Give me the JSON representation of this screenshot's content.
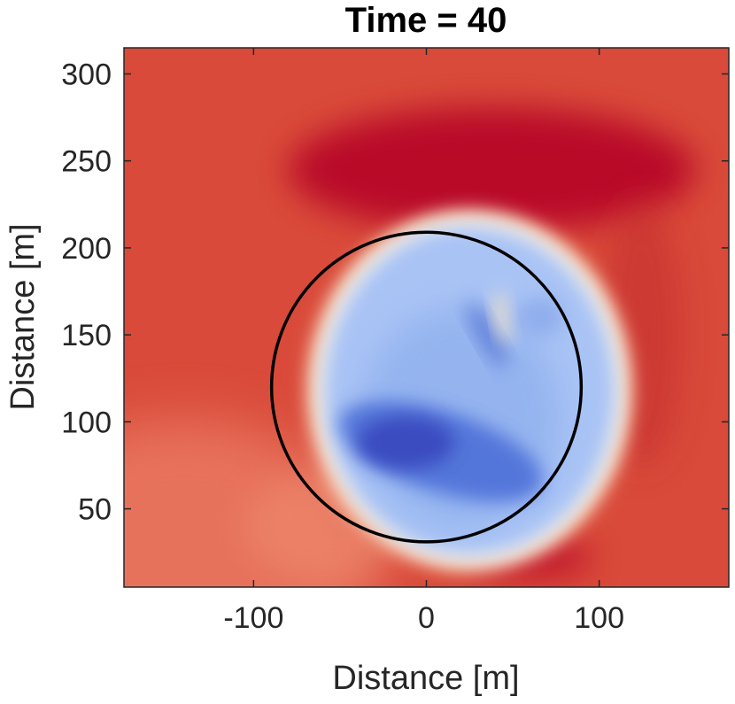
{
  "chart_data": {
    "type": "heatmap",
    "title": "Time = 40",
    "xlabel": "Distance [m]",
    "ylabel": "Distance [m]",
    "xlim": [
      -175,
      175
    ],
    "ylim": [
      5,
      315
    ],
    "x_ticks": [
      -100,
      0,
      100
    ],
    "x_tick_labels": [
      "-100",
      "0",
      "100"
    ],
    "y_ticks": [
      50,
      100,
      150,
      200,
      250,
      300
    ],
    "y_tick_labels": [
      "50",
      "100",
      "150",
      "200",
      "250",
      "300"
    ],
    "grid": false,
    "colormap": {
      "low": "#3b4cc0",
      "mid": "#f2f0ea",
      "high": "#b40426",
      "background": "#d94a3a"
    },
    "field_features": [
      {
        "kind": "blue-region",
        "center": [
          25,
          118
        ],
        "radius_x": 88,
        "radius_y": 98
      },
      {
        "kind": "minimum",
        "center": [
          -12,
          88
        ],
        "level": "darkest-blue"
      },
      {
        "kind": "minimum",
        "center": [
          35,
          150
        ],
        "level": "dark-blue-streak"
      },
      {
        "kind": "maximum",
        "center": [
          38,
          245
        ],
        "level": "dark-red-arc"
      },
      {
        "kind": "maximum",
        "center": [
          60,
          22
        ],
        "level": "dark-red-patch"
      }
    ],
    "overlay": {
      "type": "circle",
      "center": [
        0,
        120
      ],
      "radius": 89,
      "color": "#000000"
    }
  }
}
